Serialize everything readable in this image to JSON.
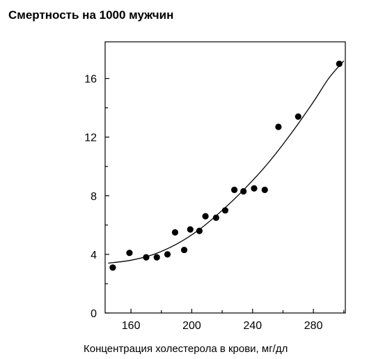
{
  "chart_data": {
    "type": "scatter",
    "title": "Смертность на 1000 мужчин",
    "xlabel": "Концентрация холестерола в крови, мг/дл",
    "ylabel": "",
    "xlim": [
      143,
      301
    ],
    "ylim": [
      0,
      18.5
    ],
    "x_ticks": [
      160,
      200,
      240,
      280
    ],
    "x_minor_ticks": [
      180,
      220,
      260,
      300
    ],
    "y_ticks": [
      0,
      4,
      8,
      12,
      16
    ],
    "y_minor_ticks": [
      2,
      6,
      10,
      14
    ],
    "grid": false,
    "legend": "none",
    "colors": {
      "points": "#000000",
      "curve": "#000000",
      "axes": "#000000"
    },
    "points": [
      {
        "x": 148,
        "y": 3.1
      },
      {
        "x": 159,
        "y": 4.1
      },
      {
        "x": 170,
        "y": 3.8
      },
      {
        "x": 177,
        "y": 3.8
      },
      {
        "x": 184,
        "y": 4.0
      },
      {
        "x": 189,
        "y": 5.5
      },
      {
        "x": 195,
        "y": 4.3
      },
      {
        "x": 199,
        "y": 5.7
      },
      {
        "x": 205,
        "y": 5.6
      },
      {
        "x": 209,
        "y": 6.6
      },
      {
        "x": 216,
        "y": 6.5
      },
      {
        "x": 222,
        "y": 7.0
      },
      {
        "x": 228,
        "y": 8.4
      },
      {
        "x": 234,
        "y": 8.3
      },
      {
        "x": 241,
        "y": 8.5
      },
      {
        "x": 248,
        "y": 8.4
      },
      {
        "x": 257,
        "y": 12.7
      },
      {
        "x": 270,
        "y": 13.4
      },
      {
        "x": 297,
        "y": 17.0
      }
    ],
    "trend_curve": [
      {
        "x": 145,
        "y": 3.4
      },
      {
        "x": 160,
        "y": 3.6
      },
      {
        "x": 175,
        "y": 4.0
      },
      {
        "x": 190,
        "y": 4.7
      },
      {
        "x": 205,
        "y": 5.7
      },
      {
        "x": 220,
        "y": 7.0
      },
      {
        "x": 235,
        "y": 8.5
      },
      {
        "x": 250,
        "y": 10.2
      },
      {
        "x": 265,
        "y": 12.2
      },
      {
        "x": 280,
        "y": 14.4
      },
      {
        "x": 290,
        "y": 16.0
      },
      {
        "x": 300,
        "y": 17.2
      }
    ]
  }
}
